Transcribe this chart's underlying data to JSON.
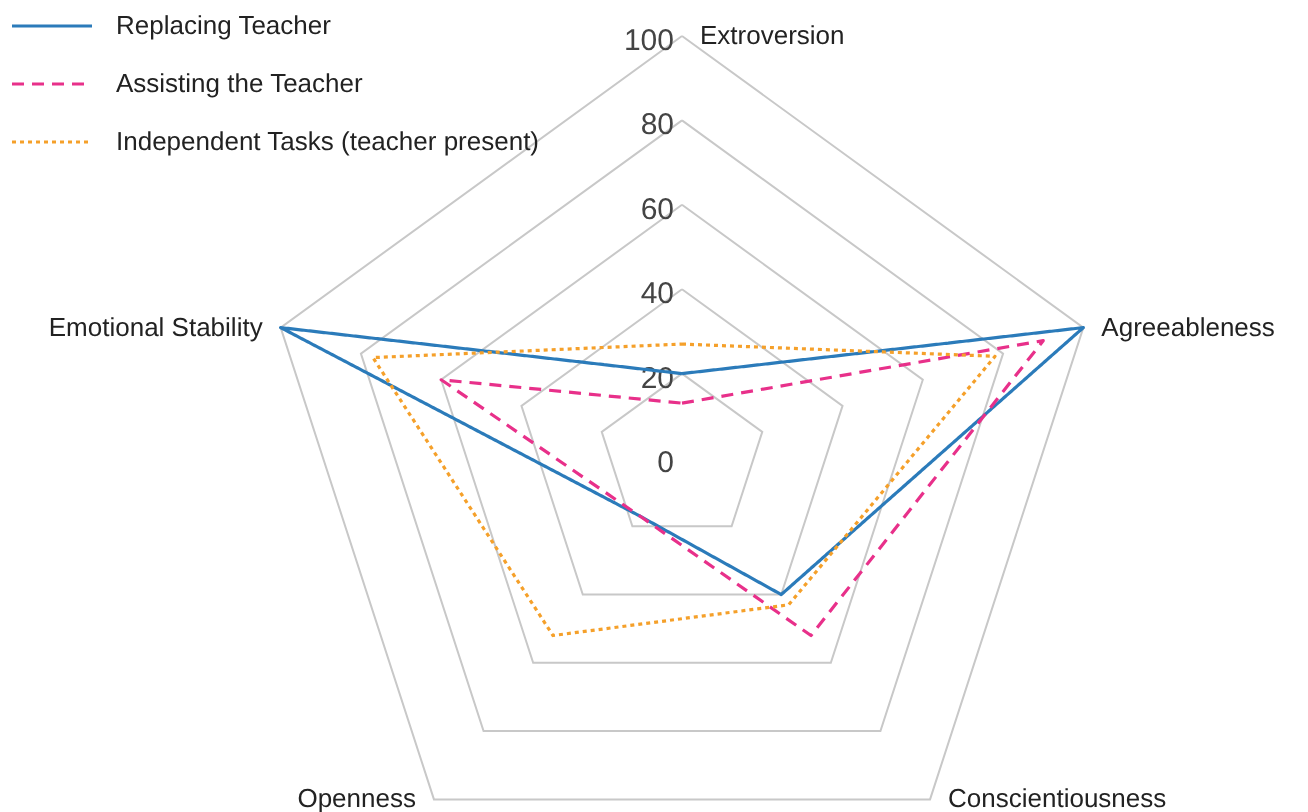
{
  "chart_data": {
    "type": "radar",
    "categories": [
      "Extroversion",
      "Agreeableness",
      "Conscientiousness",
      "Openness",
      "Emotional Stability"
    ],
    "series": [
      {
        "name": "Replacing Teacher",
        "color": "#2b7bba",
        "line_style": "solid",
        "values": [
          20,
          100,
          40,
          17,
          100
        ]
      },
      {
        "name": "Assisting the Teacher",
        "color": "#e8308a",
        "line_style": "dashed",
        "values": [
          13,
          90,
          52,
          17,
          60
        ]
      },
      {
        "name": "Independent Tasks (teacher present)",
        "color": "#f5a02a",
        "line_style": "dotted",
        "values": [
          27,
          78,
          43,
          52,
          77
        ]
      }
    ],
    "ylim": [
      0,
      100
    ],
    "yticks": [
      0,
      20,
      40,
      60,
      80,
      100
    ],
    "grid": true,
    "legend": "top left",
    "marker": "none"
  }
}
